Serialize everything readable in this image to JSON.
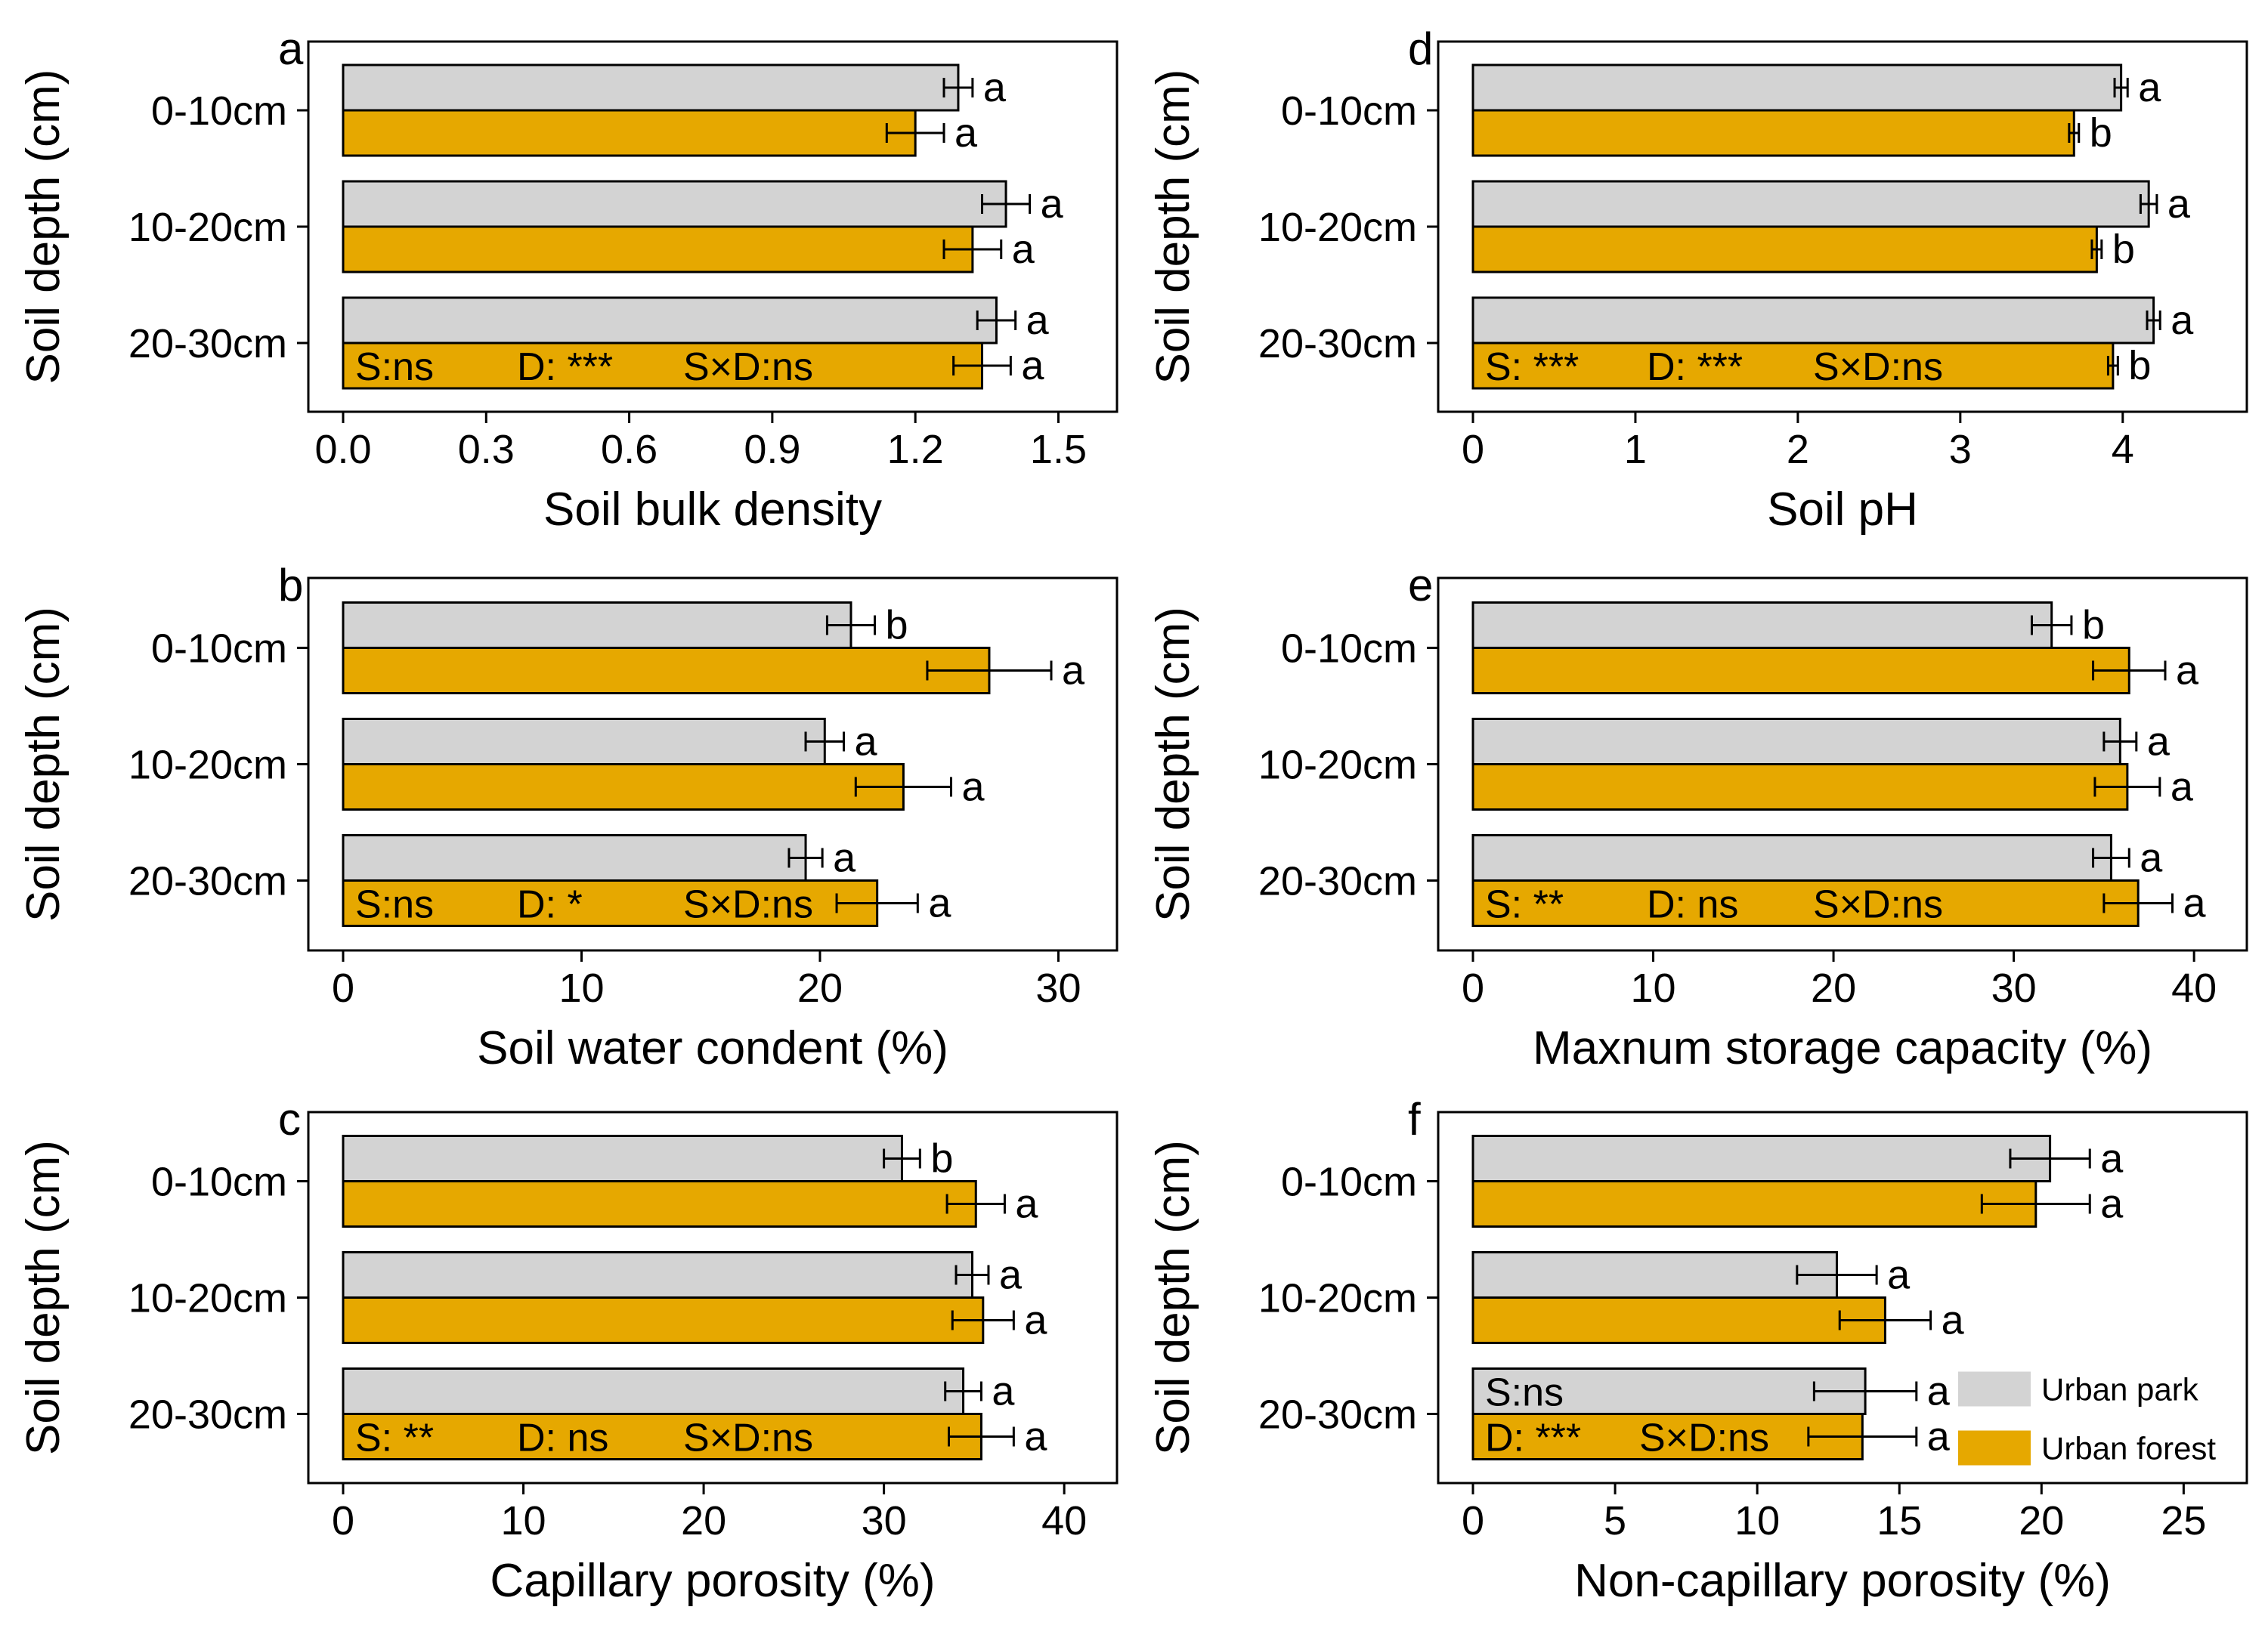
{
  "colors": {
    "urban_park": "#d3d3d3",
    "urban_forest": "#e6a800",
    "stroke": "#000000"
  },
  "legend": {
    "items": [
      "Urban park",
      "Urban forest"
    ],
    "placement": "bottom-right of panel f"
  },
  "chart_data": [
    {
      "panel": "a",
      "type": "bar",
      "orientation": "horizontal",
      "categories": [
        "0-10cm",
        "10-20cm",
        "20-30cm"
      ],
      "ylabel": "Soil depth (cm)",
      "xlabel": "Soil bulk density",
      "xlim": [
        0,
        1.55
      ],
      "xticks": [
        "0.0",
        "0.3",
        "0.6",
        "0.9",
        "1.2",
        "1.5"
      ],
      "xtick_values": [
        0,
        0.3,
        0.6,
        0.9,
        1.2,
        1.5
      ],
      "series": [
        {
          "name": "Urban park",
          "values": [
            1.29,
            1.39,
            1.37
          ],
          "errors": [
            0.03,
            0.05,
            0.04
          ],
          "letters": [
            "a",
            "a",
            "a"
          ]
        },
        {
          "name": "Urban forest",
          "values": [
            1.2,
            1.32,
            1.34
          ],
          "errors": [
            0.06,
            0.06,
            0.06
          ],
          "letters": [
            "a",
            "a",
            "a"
          ]
        }
      ],
      "stats": [
        "S:ns",
        "D: ***",
        "S×D:ns"
      ],
      "stats_rows": [
        1,
        1,
        1
      ]
    },
    {
      "panel": "b",
      "type": "bar",
      "orientation": "horizontal",
      "categories": [
        "0-10cm",
        "10-20cm",
        "20-30cm"
      ],
      "ylabel": "Soil depth (cm)",
      "xlabel": "Soil water condent (%)",
      "xlim": [
        0,
        31
      ],
      "xticks": [
        "0",
        "10",
        "20",
        "30"
      ],
      "xtick_values": [
        0,
        10,
        20,
        30
      ],
      "series": [
        {
          "name": "Urban park",
          "values": [
            21.3,
            20.2,
            19.4
          ],
          "errors": [
            1.0,
            0.8,
            0.7
          ],
          "letters": [
            "b",
            "a",
            "a"
          ]
        },
        {
          "name": "Urban forest",
          "values": [
            27.1,
            23.5,
            22.4
          ],
          "errors": [
            2.6,
            2.0,
            1.7
          ],
          "letters": [
            "a",
            "a",
            "a"
          ]
        }
      ],
      "stats": [
        "S:ns",
        "D: *",
        "S×D:ns"
      ],
      "stats_rows": [
        1,
        1,
        1
      ]
    },
    {
      "panel": "c",
      "type": "bar",
      "orientation": "horizontal",
      "categories": [
        "0-10cm",
        "10-20cm",
        "20-30cm"
      ],
      "ylabel": "Soil depth (cm)",
      "xlabel": "Capillary porosity (%)",
      "xlim": [
        0,
        41
      ],
      "xticks": [
        "0",
        "10",
        "20",
        "30",
        "40"
      ],
      "xtick_values": [
        0,
        10,
        20,
        30,
        40
      ],
      "series": [
        {
          "name": "Urban park",
          "values": [
            31.0,
            34.9,
            34.4
          ],
          "errors": [
            1.0,
            0.9,
            1.0
          ],
          "letters": [
            "b",
            "a",
            "a"
          ]
        },
        {
          "name": "Urban forest",
          "values": [
            35.1,
            35.5,
            35.4
          ],
          "errors": [
            1.6,
            1.7,
            1.8
          ],
          "letters": [
            "a",
            "a",
            "a"
          ]
        }
      ],
      "stats": [
        "S: **",
        "D: ns",
        "S×D:ns"
      ],
      "stats_rows": [
        1,
        1,
        1
      ]
    },
    {
      "panel": "d",
      "type": "bar",
      "orientation": "horizontal",
      "categories": [
        "0-10cm",
        "10-20cm",
        "20-30cm"
      ],
      "ylabel": "Soil depth (cm)",
      "xlabel": "Soil pH",
      "xlim": [
        0,
        4.55
      ],
      "xticks": [
        "0",
        "1",
        "2",
        "3",
        "4"
      ],
      "xtick_values": [
        0,
        1,
        2,
        3,
        4
      ],
      "series": [
        {
          "name": "Urban park",
          "values": [
            3.99,
            4.16,
            4.19
          ],
          "errors": [
            0.04,
            0.05,
            0.04
          ],
          "letters": [
            "a",
            "a",
            "a"
          ]
        },
        {
          "name": "Urban forest",
          "values": [
            3.7,
            3.84,
            3.94
          ],
          "errors": [
            0.03,
            0.03,
            0.03
          ],
          "letters": [
            "b",
            "b",
            "b"
          ]
        }
      ],
      "stats": [
        "S: ***",
        "D: ***",
        "S×D:ns"
      ],
      "stats_rows": [
        1,
        1,
        1
      ]
    },
    {
      "panel": "e",
      "type": "bar",
      "orientation": "horizontal",
      "categories": [
        "0-10cm",
        "10-20cm",
        "20-30cm"
      ],
      "ylabel": "Soil depth (cm)",
      "xlabel": "Maxnum storage capacity (%)",
      "xlim": [
        0,
        41
      ],
      "xticks": [
        "0",
        "10",
        "20",
        "30",
        "40"
      ],
      "xtick_values": [
        0,
        10,
        20,
        30,
        40
      ],
      "series": [
        {
          "name": "Urban park",
          "values": [
            32.1,
            35.9,
            35.4
          ],
          "errors": [
            1.1,
            0.9,
            1.0
          ],
          "letters": [
            "b",
            "a",
            "a"
          ]
        },
        {
          "name": "Urban forest",
          "values": [
            36.4,
            36.3,
            36.9
          ],
          "errors": [
            2.0,
            1.8,
            1.9
          ],
          "letters": [
            "a",
            "a",
            "a"
          ]
        }
      ],
      "stats": [
        "S: **",
        "D: ns",
        "S×D:ns"
      ],
      "stats_rows": [
        1,
        1,
        1
      ]
    },
    {
      "panel": "f",
      "type": "bar",
      "orientation": "horizontal",
      "categories": [
        "0-10cm",
        "10-20cm",
        "20-30cm"
      ],
      "ylabel": "Soil depth (cm)",
      "xlabel": "Non-capillary porosity (%)",
      "xlim": [
        0,
        26
      ],
      "xticks": [
        "0",
        "5",
        "10",
        "15",
        "20",
        "25"
      ],
      "xtick_values": [
        0,
        5,
        10,
        15,
        20,
        25
      ],
      "series": [
        {
          "name": "Urban park",
          "values": [
            20.3,
            12.8,
            13.8
          ],
          "errors": [
            1.4,
            1.4,
            1.8
          ],
          "letters": [
            "a",
            "a",
            "a"
          ]
        },
        {
          "name": "Urban forest",
          "values": [
            19.8,
            14.5,
            13.7
          ],
          "errors": [
            1.9,
            1.6,
            1.9
          ],
          "letters": [
            "a",
            "a",
            "a"
          ]
        }
      ],
      "stats": [
        "S:ns",
        "D: ***",
        "S×D:ns"
      ],
      "stats_rows": [
        0,
        1,
        1
      ]
    }
  ]
}
